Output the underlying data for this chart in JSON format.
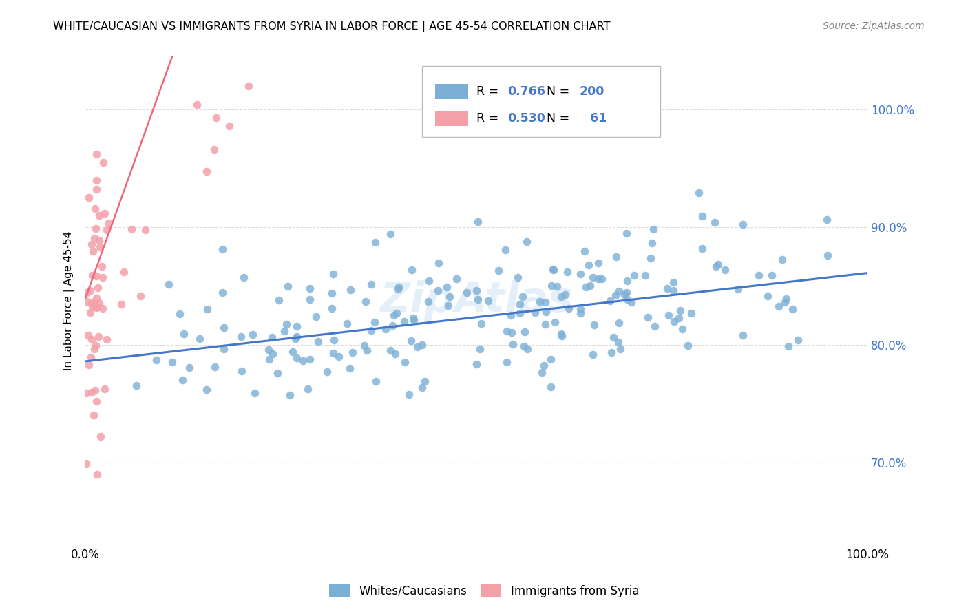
{
  "title": "WHITE/CAUCASIAN VS IMMIGRANTS FROM SYRIA IN LABOR FORCE | AGE 45-54 CORRELATION CHART",
  "source": "Source: ZipAtlas.com",
  "ylabel": "In Labor Force | Age 45-54",
  "xlim": [
    0.0,
    1.0
  ],
  "ylim": [
    0.63,
    1.045
  ],
  "ytick_positions": [
    0.7,
    0.8,
    0.9,
    1.0
  ],
  "ytick_labels": [
    "70.0%",
    "80.0%",
    "90.0%",
    "100.0%"
  ],
  "watermark": "ZipAtlas",
  "blue_color": "#7BAFD4",
  "pink_color": "#F4A0A8",
  "blue_line_color": "#4477CC",
  "pink_line_color": "#EE6677",
  "legend_blue_R": "0.766",
  "legend_blue_N": "200",
  "legend_pink_R": "0.530",
  "legend_pink_N": "61",
  "blue_label": "Whites/Caucasians",
  "pink_label": "Immigrants from Syria",
  "blue_slope": 0.075,
  "blue_intercept": 0.786,
  "pink_slope": 1.85,
  "pink_intercept": 0.84,
  "seed": 42
}
